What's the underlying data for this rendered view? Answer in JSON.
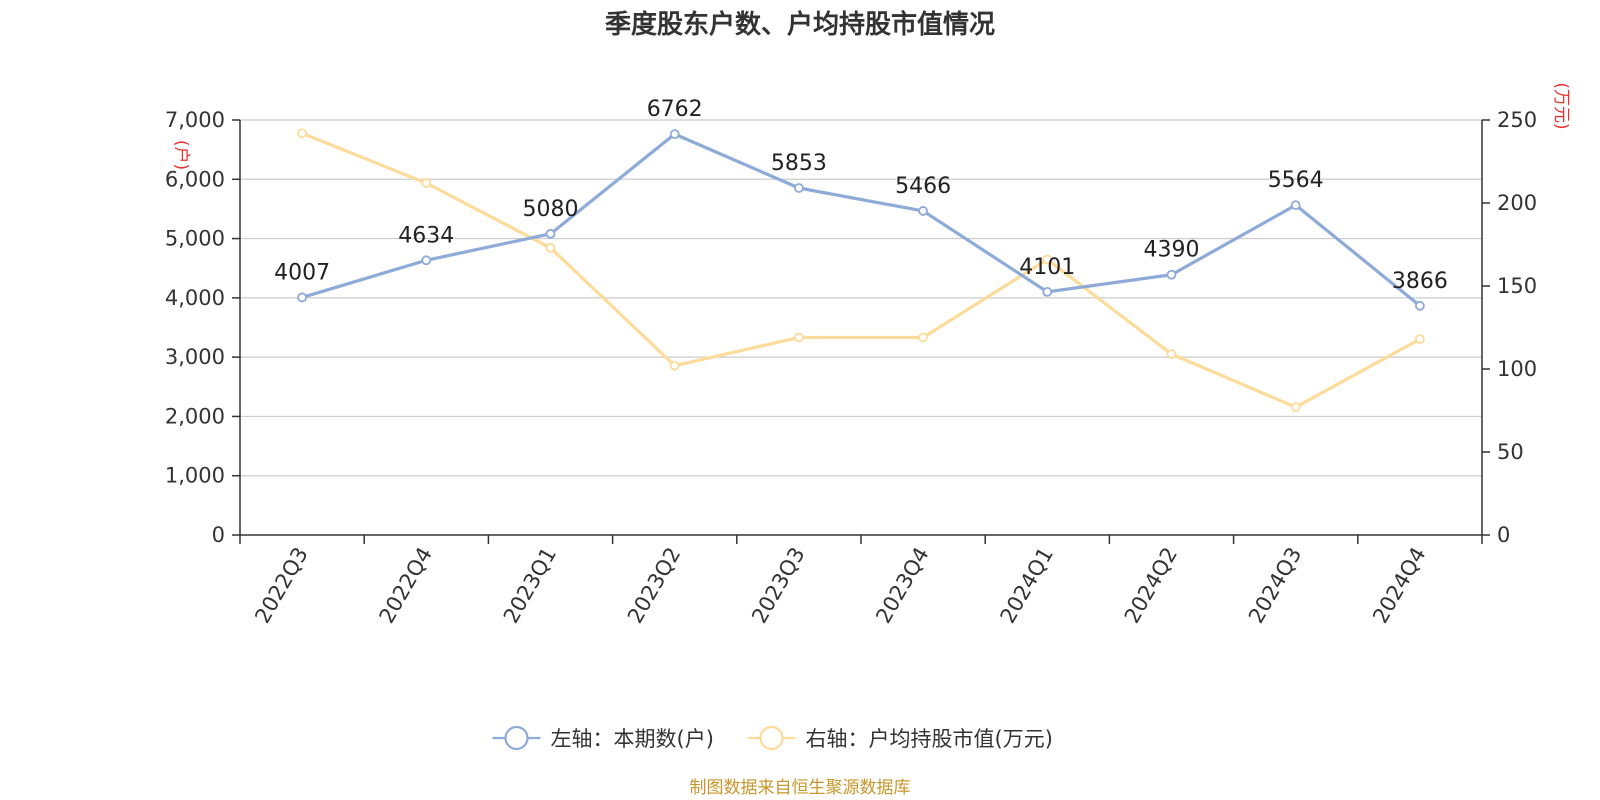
{
  "chart_data": {
    "type": "line",
    "title": "季度股东户数、户均持股市值情况",
    "categories": [
      "2022Q3",
      "2022Q4",
      "2023Q1",
      "2023Q2",
      "2023Q3",
      "2023Q4",
      "2024Q1",
      "2024Q2",
      "2024Q3",
      "2024Q4"
    ],
    "left_axis": {
      "unit": "(户)",
      "ylim": [
        0,
        7000
      ],
      "ticks": [
        "0",
        "1,000",
        "2,000",
        "3,000",
        "4,000",
        "5,000",
        "6,000",
        "7,000"
      ],
      "tick_values": [
        0,
        1000,
        2000,
        3000,
        4000,
        5000,
        6000,
        7000
      ]
    },
    "right_axis": {
      "unit": "(万元)",
      "ylim": [
        0,
        250
      ],
      "ticks": [
        "0",
        "50",
        "100",
        "150",
        "200",
        "250"
      ],
      "tick_values": [
        0,
        50,
        100,
        150,
        200,
        250
      ]
    },
    "series": [
      {
        "name": "左轴：本期数(户)",
        "axis": "left",
        "color": "#8eaad8",
        "values": [
          4007,
          4634,
          5080,
          6762,
          5853,
          5466,
          4101,
          4390,
          5564,
          3866
        ],
        "labels": [
          "4007",
          "4634",
          "5080",
          "6762",
          "5853",
          "5466",
          "4101",
          "4390",
          "5564",
          "3866"
        ]
      },
      {
        "name": "右轴：户均持股市值(万元)",
        "axis": "right",
        "color": "#fddb9a",
        "values": [
          242,
          212,
          173,
          102,
          119,
          119,
          166,
          109,
          77,
          118
        ]
      }
    ],
    "grid": true,
    "legend_position": "bottom-center"
  },
  "source_text": "制图数据来自恒生聚源数据库",
  "colors": {
    "unit_label": "#e8312f",
    "source_text": "#c8962a",
    "axis": "#333333",
    "grid": "#cccccc"
  }
}
